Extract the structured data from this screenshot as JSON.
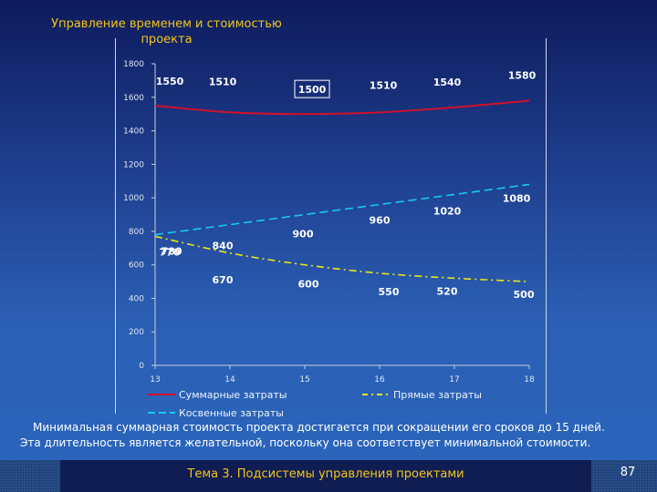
{
  "slide": {
    "title_line1": "Управление временем и стоимостью",
    "title_line2": "проекта",
    "caption_line1": "Минимальная суммарная стоимость проекта достигается при сокращении его сроков до 15 дней.",
    "caption_line2": "Эта длительность является желательной, поскольку она соответствует минимальной стоимости.",
    "footer": "Тема 3. Подсистемы управления проектами",
    "page_number": "87"
  },
  "chart_data": {
    "type": "line",
    "x": [
      13,
      14,
      15,
      16,
      17,
      18
    ],
    "ylim": [
      0,
      1800
    ],
    "yticks": [
      0,
      200,
      400,
      600,
      800,
      1000,
      1200,
      1400,
      1600,
      1800
    ],
    "xticks": [
      13,
      14,
      15,
      16,
      17,
      18
    ],
    "legend": "bottom",
    "grid": false,
    "highlight_label": "1500",
    "series": [
      {
        "name": "Суммарные затраты",
        "color": "#d0102a",
        "style": "solid",
        "values": [
          1550,
          1510,
          1500,
          1510,
          1540,
          1580
        ],
        "labels": [
          "1550",
          "1510",
          "1500",
          "1510",
          "1540",
          "1580"
        ]
      },
      {
        "name": "Прямые затраты",
        "color": "#e8e817",
        "style": "dashdot",
        "values": [
          770,
          670,
          600,
          550,
          520,
          500
        ],
        "labels": [
          "770",
          "670",
          "600",
          "550",
          "520",
          "500"
        ]
      },
      {
        "name": "Косвенные затраты",
        "color": "#19c8f5",
        "style": "dashed",
        "values": [
          780,
          840,
          900,
          960,
          1020,
          1080
        ],
        "labels": [
          "780",
          "840",
          "900",
          "960",
          "1020",
          "1080"
        ]
      }
    ]
  }
}
